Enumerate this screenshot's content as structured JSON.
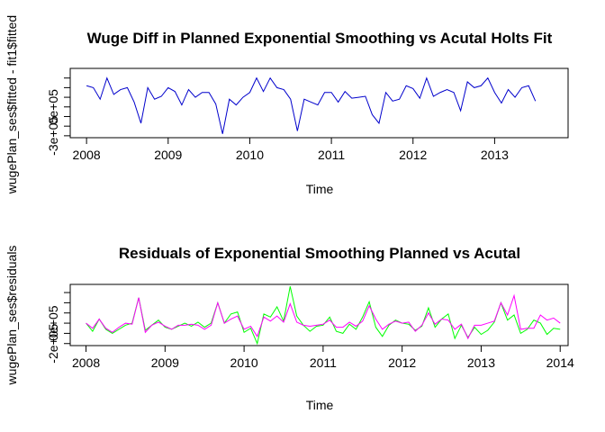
{
  "chart_data": [
    {
      "type": "line",
      "title": "Wuge Diff in Planned Exponential Smoothing vs Acutal Holts Fit",
      "xlabel": "Time",
      "ylabel": "wugePlan_ses$fitted - fit1$fitted",
      "xlim": [
        2007.8,
        2013.9
      ],
      "ylim": [
        -320000,
        400000
      ],
      "x_ticks": [
        2008,
        2009,
        2010,
        2011,
        2012,
        2013
      ],
      "y_ticks": [
        {
          "value": -300000,
          "label": "-3e+05"
        },
        {
          "value": -200000,
          "label": ""
        },
        {
          "value": -100000,
          "label": ""
        },
        {
          "value": 0,
          "label": "0e+05"
        },
        {
          "value": 100000,
          "label": ""
        },
        {
          "value": 200000,
          "label": ""
        },
        {
          "value": 300000,
          "label": ""
        }
      ],
      "x_start": 2008,
      "x_step": 0.08333333,
      "series": [
        {
          "name": "",
          "color": "#0000cc",
          "values": [
            220000,
            200000,
            80000,
            300000,
            130000,
            180000,
            200000,
            50000,
            -170000,
            200000,
            80000,
            110000,
            200000,
            160000,
            20000,
            180000,
            100000,
            150000,
            150000,
            30000,
            -280000,
            80000,
            20000,
            100000,
            150000,
            300000,
            160000,
            300000,
            200000,
            180000,
            80000,
            -250000,
            80000,
            50000,
            20000,
            150000,
            150000,
            50000,
            160000,
            90000,
            100000,
            110000,
            -80000,
            -170000,
            150000,
            60000,
            80000,
            220000,
            190000,
            90000,
            300000,
            110000,
            150000,
            180000,
            150000,
            -40000,
            260000,
            200000,
            220000,
            300000,
            150000,
            40000,
            180000,
            100000,
            200000,
            220000,
            60000
          ],
          "values_end_note": ""
        }
      ]
    },
    {
      "type": "line",
      "title": "Residuals of Exponential Smoothing Planned vs Acutal",
      "xlabel": "Time",
      "ylabel": "wugePlan_ses$residuals",
      "xlim": [
        2007.8,
        2014.1
      ],
      "ylim": [
        -220000,
        380000
      ],
      "x_ticks": [
        2008,
        2009,
        2010,
        2011,
        2012,
        2013,
        2014
      ],
      "y_ticks": [
        {
          "value": -200000,
          "label": "-2e+05"
        },
        {
          "value": -100000,
          "label": ""
        },
        {
          "value": 0,
          "label": "0e+05"
        },
        {
          "value": 100000,
          "label": ""
        },
        {
          "value": 200000,
          "label": ""
        },
        {
          "value": 300000,
          "label": ""
        }
      ],
      "x_start": 2008,
      "x_step": 0.08333333,
      "series": [
        {
          "name": "",
          "color": "#00ff00",
          "values": [
            0,
            -80000,
            40000,
            -60000,
            -100000,
            -60000,
            -20000,
            0,
            250000,
            -70000,
            -20000,
            30000,
            -40000,
            -60000,
            -30000,
            0,
            -30000,
            10000,
            -40000,
            0,
            200000,
            0,
            90000,
            110000,
            -90000,
            -50000,
            -200000,
            90000,
            60000,
            160000,
            20000,
            360000,
            70000,
            -20000,
            -80000,
            -30000,
            -20000,
            60000,
            -80000,
            -100000,
            -10000,
            -60000,
            60000,
            210000,
            -40000,
            -130000,
            -20000,
            30000,
            0,
            -10000,
            -70000,
            -30000,
            150000,
            -40000,
            40000,
            90000,
            -150000,
            -20000,
            -140000,
            -40000,
            -110000,
            -70000,
            10000,
            200000,
            30000,
            80000,
            -100000,
            -60000,
            30000,
            0,
            -110000,
            -50000,
            -60000
          ]
        },
        {
          "name": "",
          "color": "#ff00ff",
          "values": [
            0,
            -50000,
            40000,
            -50000,
            -90000,
            -40000,
            0,
            -10000,
            250000,
            -90000,
            -20000,
            10000,
            -30000,
            -60000,
            -20000,
            -20000,
            -10000,
            -20000,
            -60000,
            -20000,
            200000,
            0,
            40000,
            70000,
            -60000,
            -30000,
            -130000,
            60000,
            20000,
            70000,
            10000,
            190000,
            10000,
            -20000,
            -30000,
            -20000,
            -10000,
            30000,
            -40000,
            -40000,
            10000,
            -30000,
            20000,
            170000,
            40000,
            -60000,
            -10000,
            20000,
            0,
            10000,
            -80000,
            -20000,
            100000,
            -10000,
            40000,
            30000,
            -60000,
            -10000,
            -150000,
            -20000,
            -20000,
            0,
            20000,
            200000,
            80000,
            270000,
            -60000,
            -50000,
            -50000,
            80000,
            30000,
            50000,
            0
          ]
        }
      ]
    }
  ]
}
